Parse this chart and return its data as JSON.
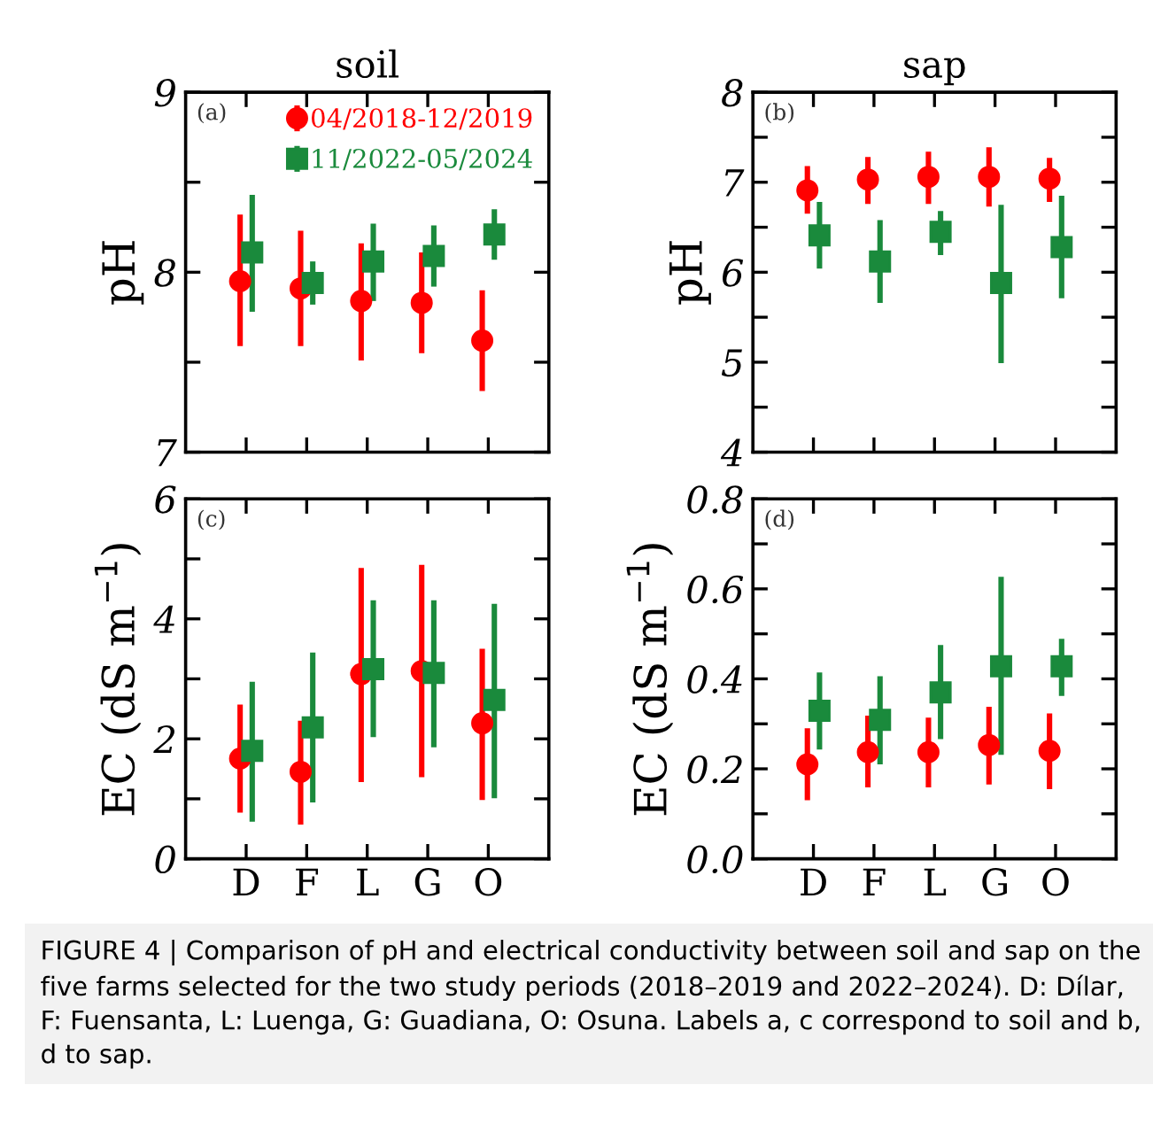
{
  "chart_data": [
    {
      "type": "scatter",
      "title": "soil",
      "ylabel": "pH",
      "categories": [
        null,
        null,
        null,
        null,
        null
      ],
      "legend": "top right",
      "series": [
        {
          "name": "04/2018-12/2019",
          "color": "#ff0000",
          "marker": "circle",
          "values": [
            7.95,
            7.91,
            7.84,
            7.83,
            7.62
          ],
          "errors": [
            [
              7.59,
              8.32
            ],
            [
              7.59,
              8.23
            ],
            [
              7.51,
              8.16
            ],
            [
              7.55,
              8.11
            ],
            [
              7.34,
              7.9
            ]
          ]
        },
        {
          "name": "11/2022-05/2024",
          "color": "#1a8a3c",
          "marker": "square",
          "values": [
            8.11,
            7.94,
            8.06,
            8.09,
            8.21
          ],
          "errors": [
            [
              7.78,
              8.43
            ],
            [
              7.82,
              8.06
            ],
            [
              7.84,
              8.27
            ],
            [
              7.92,
              8.26
            ],
            [
              8.07,
              8.35
            ]
          ]
        }
      ],
      "ylim": [
        7,
        9
      ],
      "yticks": [
        7,
        {
          "value": 7.5,
          "label": null
        },
        8,
        {
          "value": 8.5,
          "label": null
        },
        9
      ],
      "annotations": [
        "(a)",
        "FIGURE 4 | Comparison of pH and electrical conductivity between soil and sap on the five farms selected for the two study periods (2018–2019 and 2022–2024). D: Dílar, F: Fuensanta, L: Luenga, G: Guadiana, O: Osuna. Labels a, c correspond to soil and b, d to sap."
      ]
    },
    {
      "type": "scatter",
      "title": "sap",
      "ylabel": "pH",
      "categories": [
        null,
        null,
        null,
        null,
        null
      ],
      "series": [
        {
          "color": "#ff0000",
          "marker": "circle",
          "values": [
            6.91,
            7.03,
            7.06,
            7.06,
            7.04
          ],
          "errors": [
            [
              6.65,
              7.18
            ],
            [
              6.76,
              7.28
            ],
            [
              6.76,
              7.34
            ],
            [
              6.73,
              7.39
            ],
            [
              6.78,
              7.27
            ]
          ]
        },
        {
          "color": "#1a8a3c",
          "marker": "square",
          "values": [
            6.41,
            6.12,
            6.45,
            5.88,
            6.28
          ],
          "errors": [
            [
              6.04,
              6.78
            ],
            [
              5.66,
              6.58
            ],
            [
              6.19,
              6.68
            ],
            [
              4.99,
              6.75
            ],
            [
              5.71,
              6.85
            ]
          ]
        }
      ],
      "ylim": [
        4,
        8
      ],
      "yticks": [
        4,
        {
          "value": 4.5,
          "label": null
        },
        5,
        {
          "value": 5.5,
          "label": null
        },
        6,
        {
          "value": 6.5,
          "label": null
        },
        7,
        {
          "value": 7.5,
          "label": null
        },
        8
      ],
      "annotations": [
        "(b)"
      ]
    },
    {
      "type": "scatter",
      "ylabel": "EC (dS m$^{−1}$)",
      "categories": [
        "D",
        "F",
        "L",
        "G",
        "O"
      ],
      "series": [
        {
          "color": "#ff0000",
          "marker": "circle",
          "values": [
            1.67,
            1.45,
            3.08,
            3.13,
            2.26
          ],
          "errors": [
            [
              0.77,
              2.57
            ],
            [
              0.57,
              2.3
            ],
            [
              1.28,
              4.85
            ],
            [
              1.36,
              4.9
            ],
            [
              0.98,
              3.5
            ]
          ]
        },
        {
          "color": "#1a8a3c",
          "marker": "square",
          "values": [
            1.8,
            2.19,
            3.16,
            3.1,
            2.65
          ],
          "errors": [
            [
              0.62,
              2.95
            ],
            [
              0.94,
              3.44
            ],
            [
              2.03,
              4.31
            ],
            [
              1.86,
              4.31
            ],
            [
              1.01,
              4.25
            ]
          ]
        }
      ],
      "ylim": [
        0,
        6
      ],
      "yticks": [
        0,
        {
          "value": 1,
          "label": null
        },
        2,
        {
          "value": 3,
          "label": null
        },
        4,
        {
          "value": 5,
          "label": null
        },
        6
      ],
      "annotations": [
        "(c)"
      ]
    },
    {
      "type": "scatter",
      "ylabel": "EC (dS m$^{−1}$)",
      "categories": [
        "D",
        "F",
        "L",
        "G",
        "O"
      ],
      "series": [
        {
          "color": "#ff0000",
          "marker": "circle",
          "values": [
            0.21,
            0.237,
            0.237,
            0.253,
            0.24
          ],
          "errors": [
            [
              0.13,
              0.29
            ],
            [
              0.159,
              0.318
            ],
            [
              0.159,
              0.314
            ],
            [
              0.165,
              0.338
            ],
            [
              0.155,
              0.323
            ]
          ]
        },
        {
          "color": "#1a8a3c",
          "marker": "square",
          "values": [
            0.329,
            0.309,
            0.37,
            0.428,
            0.428
          ],
          "errors": [
            [
              0.243,
              0.414
            ],
            [
              0.21,
              0.406
            ],
            [
              0.266,
              0.475
            ],
            [
              0.231,
              0.627
            ],
            [
              0.362,
              0.489
            ]
          ]
        }
      ],
      "ylim": [
        0.0,
        0.8
      ],
      "yticks": [
        {
          "value": 0.0,
          "label": "0.0"
        },
        {
          "value": 0.1,
          "label": null
        },
        0.2,
        {
          "value": 0.3,
          "label": null
        },
        0.4,
        {
          "value": 0.5,
          "label": null
        },
        0.6,
        {
          "value": 0.7,
          "label": null
        },
        0.8
      ],
      "annotations": [
        "(d)"
      ]
    }
  ]
}
